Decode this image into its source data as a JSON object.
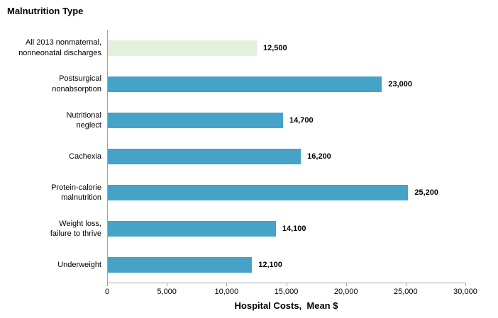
{
  "chart_data": {
    "type": "bar",
    "orientation": "horizontal",
    "title": "Malnutrition Type",
    "xlabel": "Hospital Costs,  Mean $",
    "ylabel": "Malnutrition Type",
    "categories": [
      "All 2013 nonmaternal,\nnonneonatal discharges",
      "Postsurgical\nnonabsorption",
      "Nutritional\nneglect",
      "Cachexia",
      "Protein-calorie\nmalnutrition",
      "Weight loss,\nfailure to thrive",
      "Underweight"
    ],
    "values": [
      12500,
      23000,
      14700,
      16200,
      25200,
      14100,
      12100
    ],
    "value_labels": [
      "12,500",
      "23,000",
      "14,700",
      "16,200",
      "25,200",
      "14,100",
      "12,100"
    ],
    "xlim": [
      0,
      30000
    ],
    "tick_step": 5000,
    "tick_values": [
      0,
      5000,
      10000,
      15000,
      20000,
      25000,
      30000
    ],
    "tick_labels": [
      "0",
      "5,000",
      "10,000",
      "15,000",
      "20,000",
      "25,000",
      "30,000"
    ],
    "grid": false,
    "legend": "none",
    "colors": {
      "bar_default": "#44a3c7",
      "bar_highlight": "#e2f1dc",
      "axis": "#a3a3a3",
      "text": "#000000"
    },
    "highlight_index": 0
  }
}
